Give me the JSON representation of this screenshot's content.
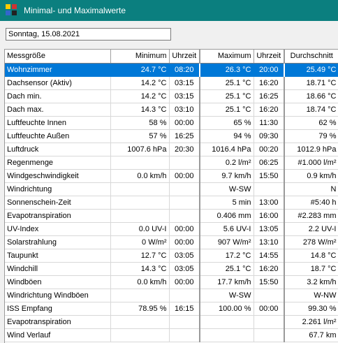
{
  "window": {
    "title": "Minimal- und Maximalwerte"
  },
  "date_field": {
    "value": "Sonntag, 15.08.2021"
  },
  "table": {
    "headers": [
      "Messgröße",
      "Minimum",
      "Uhrzeit",
      "Maximum",
      "Uhrzeit",
      "Durchschnitt"
    ],
    "selected_row": 0,
    "rows": [
      [
        "Wohnzimmer",
        "24.7 °C",
        "08:20",
        "26.3 °C",
        "20:00",
        "25.49 °C"
      ],
      [
        "Dachsensor (Aktiv)",
        "14.2 °C",
        "03:15",
        "25.1 °C",
        "16:20",
        "18.71 °C"
      ],
      [
        "Dach min.",
        "14.2 °C",
        "03:15",
        "25.1 °C",
        "16:25",
        "18.66 °C"
      ],
      [
        "Dach max.",
        "14.3 °C",
        "03:10",
        "25.1 °C",
        "16:20",
        "18.74 °C"
      ],
      [
        "Luftfeuchte Innen",
        "58 %",
        "00:00",
        "65 %",
        "11:30",
        "62 %"
      ],
      [
        "Luftfeuchte Außen",
        "57 %",
        "16:25",
        "94 %",
        "09:30",
        "79 %"
      ],
      [
        "Luftdruck",
        "1007.6 hPa",
        "20:30",
        "1016.4 hPa",
        "00:20",
        "1012.9 hPa"
      ],
      [
        "Regenmenge",
        "",
        "",
        "0.2 l/m²",
        "06:25",
        "#1.000 l/m²"
      ],
      [
        "Windgeschwindigkeit",
        "0.0 km/h",
        "00:00",
        "9.7 km/h",
        "15:50",
        "0.9 km/h"
      ],
      [
        "Windrichtung",
        "",
        "",
        "W-SW",
        "",
        "N"
      ],
      [
        "Sonnenschein-Zeit",
        "",
        "",
        "5 min",
        "13:00",
        "#5:40 h"
      ],
      [
        "Evapotranspiration",
        "",
        "",
        "0.406 mm",
        "16:00",
        "#2.283 mm"
      ],
      [
        "UV-Index",
        "0.0 UV-I",
        "00:00",
        "5.6 UV-I",
        "13:05",
        "2.2 UV-I"
      ],
      [
        "Solarstrahlung",
        "0 W/m²",
        "00:00",
        "907 W/m²",
        "13:10",
        "278 W/m²"
      ],
      [
        "Taupunkt",
        "12.7 °C",
        "03:05",
        "17.2 °C",
        "14:55",
        "14.8 °C"
      ],
      [
        "Windchill",
        "14.3 °C",
        "03:05",
        "25.1 °C",
        "16:20",
        "18.7 °C"
      ],
      [
        "Windböen",
        "0.0 km/h",
        "00:00",
        "17.7 km/h",
        "15:50",
        "3.2 km/h"
      ],
      [
        "Windrichtung Windböen",
        "",
        "",
        "W-SW",
        "",
        "W-NW"
      ],
      [
        "ISS Empfang",
        "78.95 %",
        "16:15",
        "100.00 %",
        "00:00",
        "99.30 %"
      ],
      [
        "Evapotranspiration",
        "",
        "",
        "",
        "",
        "2.261 l/m²"
      ],
      [
        "Wind Verlauf",
        "",
        "",
        "",
        "",
        "67.7 km"
      ]
    ]
  },
  "colors": {
    "titlebar": "#0b7f7f",
    "selection": "#0078d7"
  },
  "icons": {
    "app": "weather-station-icon"
  }
}
